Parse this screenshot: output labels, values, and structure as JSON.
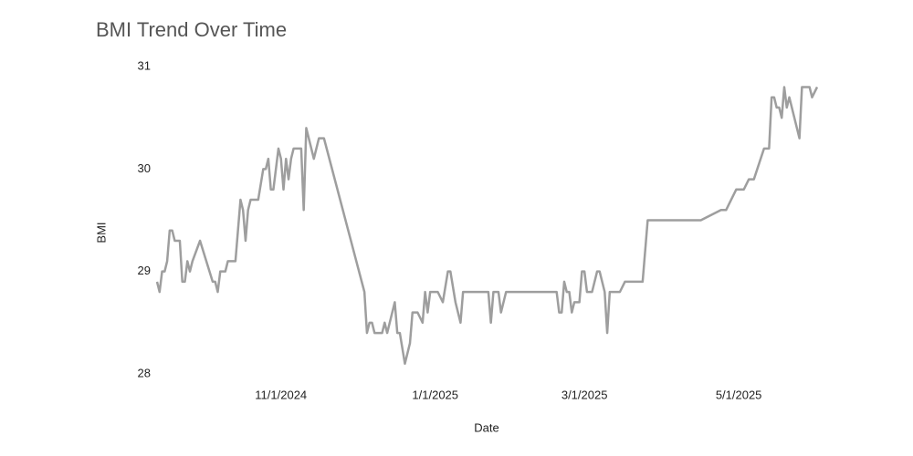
{
  "chart_data": {
    "type": "line",
    "title": "BMI Trend Over Time",
    "x_label": "Date",
    "y_label": "BMI",
    "color": "#9e9e9e",
    "x": [
      "9/13/2024",
      "9/14/2024",
      "9/15/2024",
      "9/16/2024",
      "9/17/2024",
      "9/18/2024",
      "9/19/2024",
      "9/20/2024",
      "9/22/2024",
      "9/23/2024",
      "9/24/2024",
      "9/25/2024",
      "9/26/2024",
      "9/27/2024",
      "9/30/2024",
      "10/5/2024",
      "10/6/2024",
      "10/7/2024",
      "10/8/2024",
      "10/10/2024",
      "10/11/2024",
      "10/14/2024",
      "10/16/2024",
      "10/17/2024",
      "10/18/2024",
      "10/19/2024",
      "10/20/2024",
      "10/23/2024",
      "10/25/2024",
      "10/26/2024",
      "10/27/2024",
      "10/28/2024",
      "10/29/2024",
      "10/31/2024",
      "11/1/2024",
      "11/2/2024",
      "11/3/2024",
      "11/4/2024",
      "11/5/2024",
      "11/6/2024",
      "11/9/2024",
      "11/10/2024",
      "11/11/2024",
      "11/14/2024",
      "11/16/2024",
      "11/18/2024",
      "12/4/2024",
      "12/5/2024",
      "12/6/2024",
      "12/7/2024",
      "12/8/2024",
      "12/11/2024",
      "12/12/2024",
      "12/13/2024",
      "12/16/2024",
      "12/17/2024",
      "12/18/2024",
      "12/20/2024",
      "12/22/2024",
      "12/23/2024",
      "12/25/2024",
      "12/27/2024",
      "12/28/2024",
      "12/29/2024",
      "12/30/2024",
      "1/2/2025",
      "1/4/2025",
      "1/6/2025",
      "1/7/2025",
      "1/9/2025",
      "1/11/2025",
      "1/12/2025",
      "1/22/2025",
      "1/23/2025",
      "1/24/2025",
      "1/26/2025",
      "1/27/2025",
      "1/29/2025",
      "2/18/2025",
      "2/19/2025",
      "2/20/2025",
      "2/21/2025",
      "2/22/2025",
      "2/23/2025",
      "2/24/2025",
      "2/25/2025",
      "2/27/2025",
      "2/28/2025",
      "3/1/2025",
      "3/2/2025",
      "3/4/2025",
      "3/6/2025",
      "3/7/2025",
      "3/9/2025",
      "3/10/2025",
      "3/11/2025",
      "3/15/2025",
      "3/17/2025",
      "3/24/2025",
      "3/26/2025",
      "4/16/2025",
      "4/24/2025",
      "4/26/2025",
      "4/30/2025",
      "5/3/2025",
      "5/5/2025",
      "5/7/2025",
      "5/11/2025",
      "5/13/2025",
      "5/14/2025",
      "5/15/2025",
      "5/16/2025",
      "5/17/2025",
      "5/18/2025",
      "5/19/2025",
      "5/20/2025",
      "5/21/2025",
      "5/23/2025",
      "5/25/2025",
      "5/26/2025",
      "5/29/2025",
      "5/30/2025",
      "6/1/2025"
    ],
    "values": [
      28.9,
      28.8,
      29.0,
      29.0,
      29.1,
      29.4,
      29.4,
      29.3,
      29.3,
      28.9,
      28.9,
      29.1,
      29.0,
      29.1,
      29.3,
      28.9,
      28.9,
      28.8,
      29.0,
      29.0,
      29.1,
      29.1,
      29.7,
      29.6,
      29.3,
      29.6,
      29.7,
      29.7,
      30.0,
      30.0,
      30.1,
      29.8,
      29.8,
      30.2,
      30.1,
      29.8,
      30.1,
      29.9,
      30.1,
      30.2,
      30.2,
      29.6,
      30.4,
      30.1,
      30.3,
      30.3,
      28.8,
      28.4,
      28.5,
      28.5,
      28.4,
      28.4,
      28.5,
      28.4,
      28.7,
      28.4,
      28.4,
      28.1,
      28.3,
      28.6,
      28.6,
      28.5,
      28.8,
      28.6,
      28.8,
      28.8,
      28.7,
      29.0,
      29.0,
      28.7,
      28.5,
      28.8,
      28.8,
      28.5,
      28.8,
      28.8,
      28.6,
      28.8,
      28.8,
      28.6,
      28.6,
      28.9,
      28.8,
      28.8,
      28.6,
      28.7,
      28.7,
      29.0,
      29.0,
      28.8,
      28.8,
      29.0,
      29.0,
      28.8,
      28.4,
      28.8,
      28.8,
      28.9,
      28.9,
      29.5,
      29.5,
      29.6,
      29.6,
      29.8,
      29.8,
      29.9,
      29.9,
      30.2,
      30.2,
      30.7,
      30.7,
      30.6,
      30.6,
      30.5,
      30.8,
      30.6,
      30.7,
      30.5,
      30.3,
      30.8,
      30.8,
      30.7,
      30.8
    ],
    "xlim": [
      "9/13/2024",
      "6/1/2025"
    ],
    "xticks": [
      "11/1/2024",
      "1/1/2025",
      "3/1/2025",
      "5/1/2025"
    ],
    "ylim": [
      28,
      31
    ],
    "yticks": [
      28,
      29,
      30,
      31
    ]
  }
}
